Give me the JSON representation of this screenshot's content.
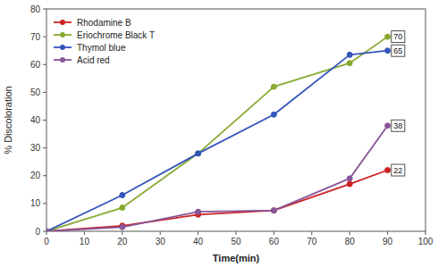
{
  "chart_data": {
    "type": "line",
    "x": [
      0,
      20,
      40,
      60,
      80,
      90
    ],
    "series": [
      {
        "name": "Rhodamine B",
        "color": "#cc2222",
        "values": [
          0,
          2,
          6,
          7.5,
          17,
          22
        ]
      },
      {
        "name": "Eriochrome Black T",
        "color": "#88aa33",
        "values": [
          0,
          8.5,
          28,
          52,
          60.5,
          70
        ]
      },
      {
        "name": "Thymol blue",
        "color": "#3355bb",
        "values": [
          0,
          13,
          28,
          42,
          63.5,
          65
        ]
      },
      {
        "name": "Acid red",
        "color": "#885599",
        "values": [
          0,
          1.5,
          7,
          7.5,
          19,
          38
        ]
      }
    ],
    "marker": "circle",
    "xlabel": "Time(min)",
    "ylabel": "% Discoloration",
    "xlim": [
      0,
      100
    ],
    "ylim": [
      0,
      80
    ],
    "xticks": [
      0,
      10,
      20,
      30,
      40,
      50,
      60,
      70,
      80,
      90,
      100
    ],
    "yticks": [
      0,
      10,
      20,
      30,
      40,
      50,
      60,
      70,
      80
    ],
    "annotations": [
      {
        "text": "70",
        "x": 91,
        "y": 70
      },
      {
        "text": "65",
        "x": 91,
        "y": 65
      },
      {
        "text": "38",
        "x": 91,
        "y": 38
      },
      {
        "text": "22",
        "x": 91,
        "y": 22
      }
    ],
    "legend": "upper left",
    "grid": false
  }
}
